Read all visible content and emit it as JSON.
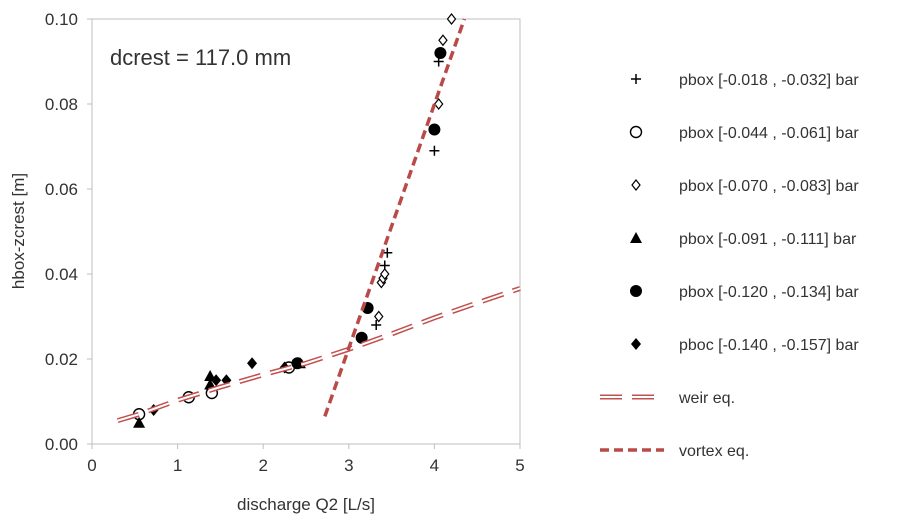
{
  "chart_data": {
    "type": "scatter",
    "xlabel": "discharge Q2  [L/s]",
    "ylabel": "hbox-zcrest [m]",
    "xlim": [
      0,
      5
    ],
    "ylim": [
      0,
      0.1
    ],
    "x_ticks": [
      "0",
      "1",
      "2",
      "3",
      "4",
      "5"
    ],
    "y_ticks": [
      "0.00",
      "0.02",
      "0.04",
      "0.06",
      "0.08",
      "0.10"
    ],
    "grid": false,
    "legend_position": "right",
    "annotation": "dcrest = 117.0 mm",
    "series": [
      {
        "name": "pbox [-0.018 , -0.032] bar",
        "marker": "plus",
        "color": "#000000",
        "points": [
          [
            3.32,
            0.028
          ],
          [
            3.42,
            0.042
          ],
          [
            3.45,
            0.045
          ],
          [
            4.0,
            0.069
          ],
          [
            4.05,
            0.09
          ]
        ]
      },
      {
        "name": "pbox [-0.044 , -0.061] bar",
        "marker": "circle-open",
        "color": "#000000",
        "points": [
          [
            0.55,
            0.007
          ],
          [
            1.13,
            0.011
          ],
          [
            1.4,
            0.012
          ],
          [
            2.3,
            0.018
          ]
        ]
      },
      {
        "name": "pbox [-0.070 , -0.083] bar",
        "marker": "diamond-open",
        "color": "#000000",
        "points": [
          [
            3.35,
            0.03
          ],
          [
            3.38,
            0.038
          ],
          [
            3.4,
            0.039
          ],
          [
            3.42,
            0.04
          ],
          [
            4.05,
            0.08
          ],
          [
            4.1,
            0.095
          ],
          [
            4.2,
            0.1
          ]
        ]
      },
      {
        "name": "pbox [-0.091 , -0.111] bar",
        "marker": "triangle",
        "color": "#000000",
        "points": [
          [
            0.55,
            0.005
          ],
          [
            1.38,
            0.014
          ],
          [
            1.38,
            0.016
          ],
          [
            2.43,
            0.019
          ]
        ]
      },
      {
        "name": "pbox [-0.120 , -0.134] bar",
        "marker": "circle",
        "color": "#000000",
        "points": [
          [
            2.4,
            0.019
          ],
          [
            3.15,
            0.025
          ],
          [
            3.22,
            0.032
          ],
          [
            4.0,
            0.074
          ],
          [
            4.07,
            0.092
          ]
        ]
      },
      {
        "name": "pboc [-0.140 , -0.157] bar",
        "marker": "diamond",
        "color": "#000000",
        "points": [
          [
            0.72,
            0.008
          ],
          [
            1.45,
            0.015
          ],
          [
            1.57,
            0.015
          ],
          [
            1.87,
            0.019
          ],
          [
            2.25,
            0.018
          ]
        ]
      },
      {
        "name": "weir eq.",
        "type": "line",
        "style": "double-dash",
        "color": "#c0504d",
        "points": [
          [
            0.3,
            0.0055
          ],
          [
            0.55,
            0.007
          ],
          [
            1.0,
            0.0103
          ],
          [
            1.5,
            0.0134
          ],
          [
            2.0,
            0.0163
          ],
          [
            2.5,
            0.019
          ],
          [
            3.0,
            0.0223
          ],
          [
            3.5,
            0.0259
          ],
          [
            4.0,
            0.0297
          ],
          [
            4.5,
            0.0332
          ],
          [
            5.0,
            0.0366
          ]
        ]
      },
      {
        "name": "vortex eq.",
        "type": "line",
        "style": "dash",
        "color": "#b94a48",
        "points": [
          [
            2.72,
            0.0065
          ],
          [
            4.35,
            0.1
          ]
        ]
      }
    ]
  }
}
